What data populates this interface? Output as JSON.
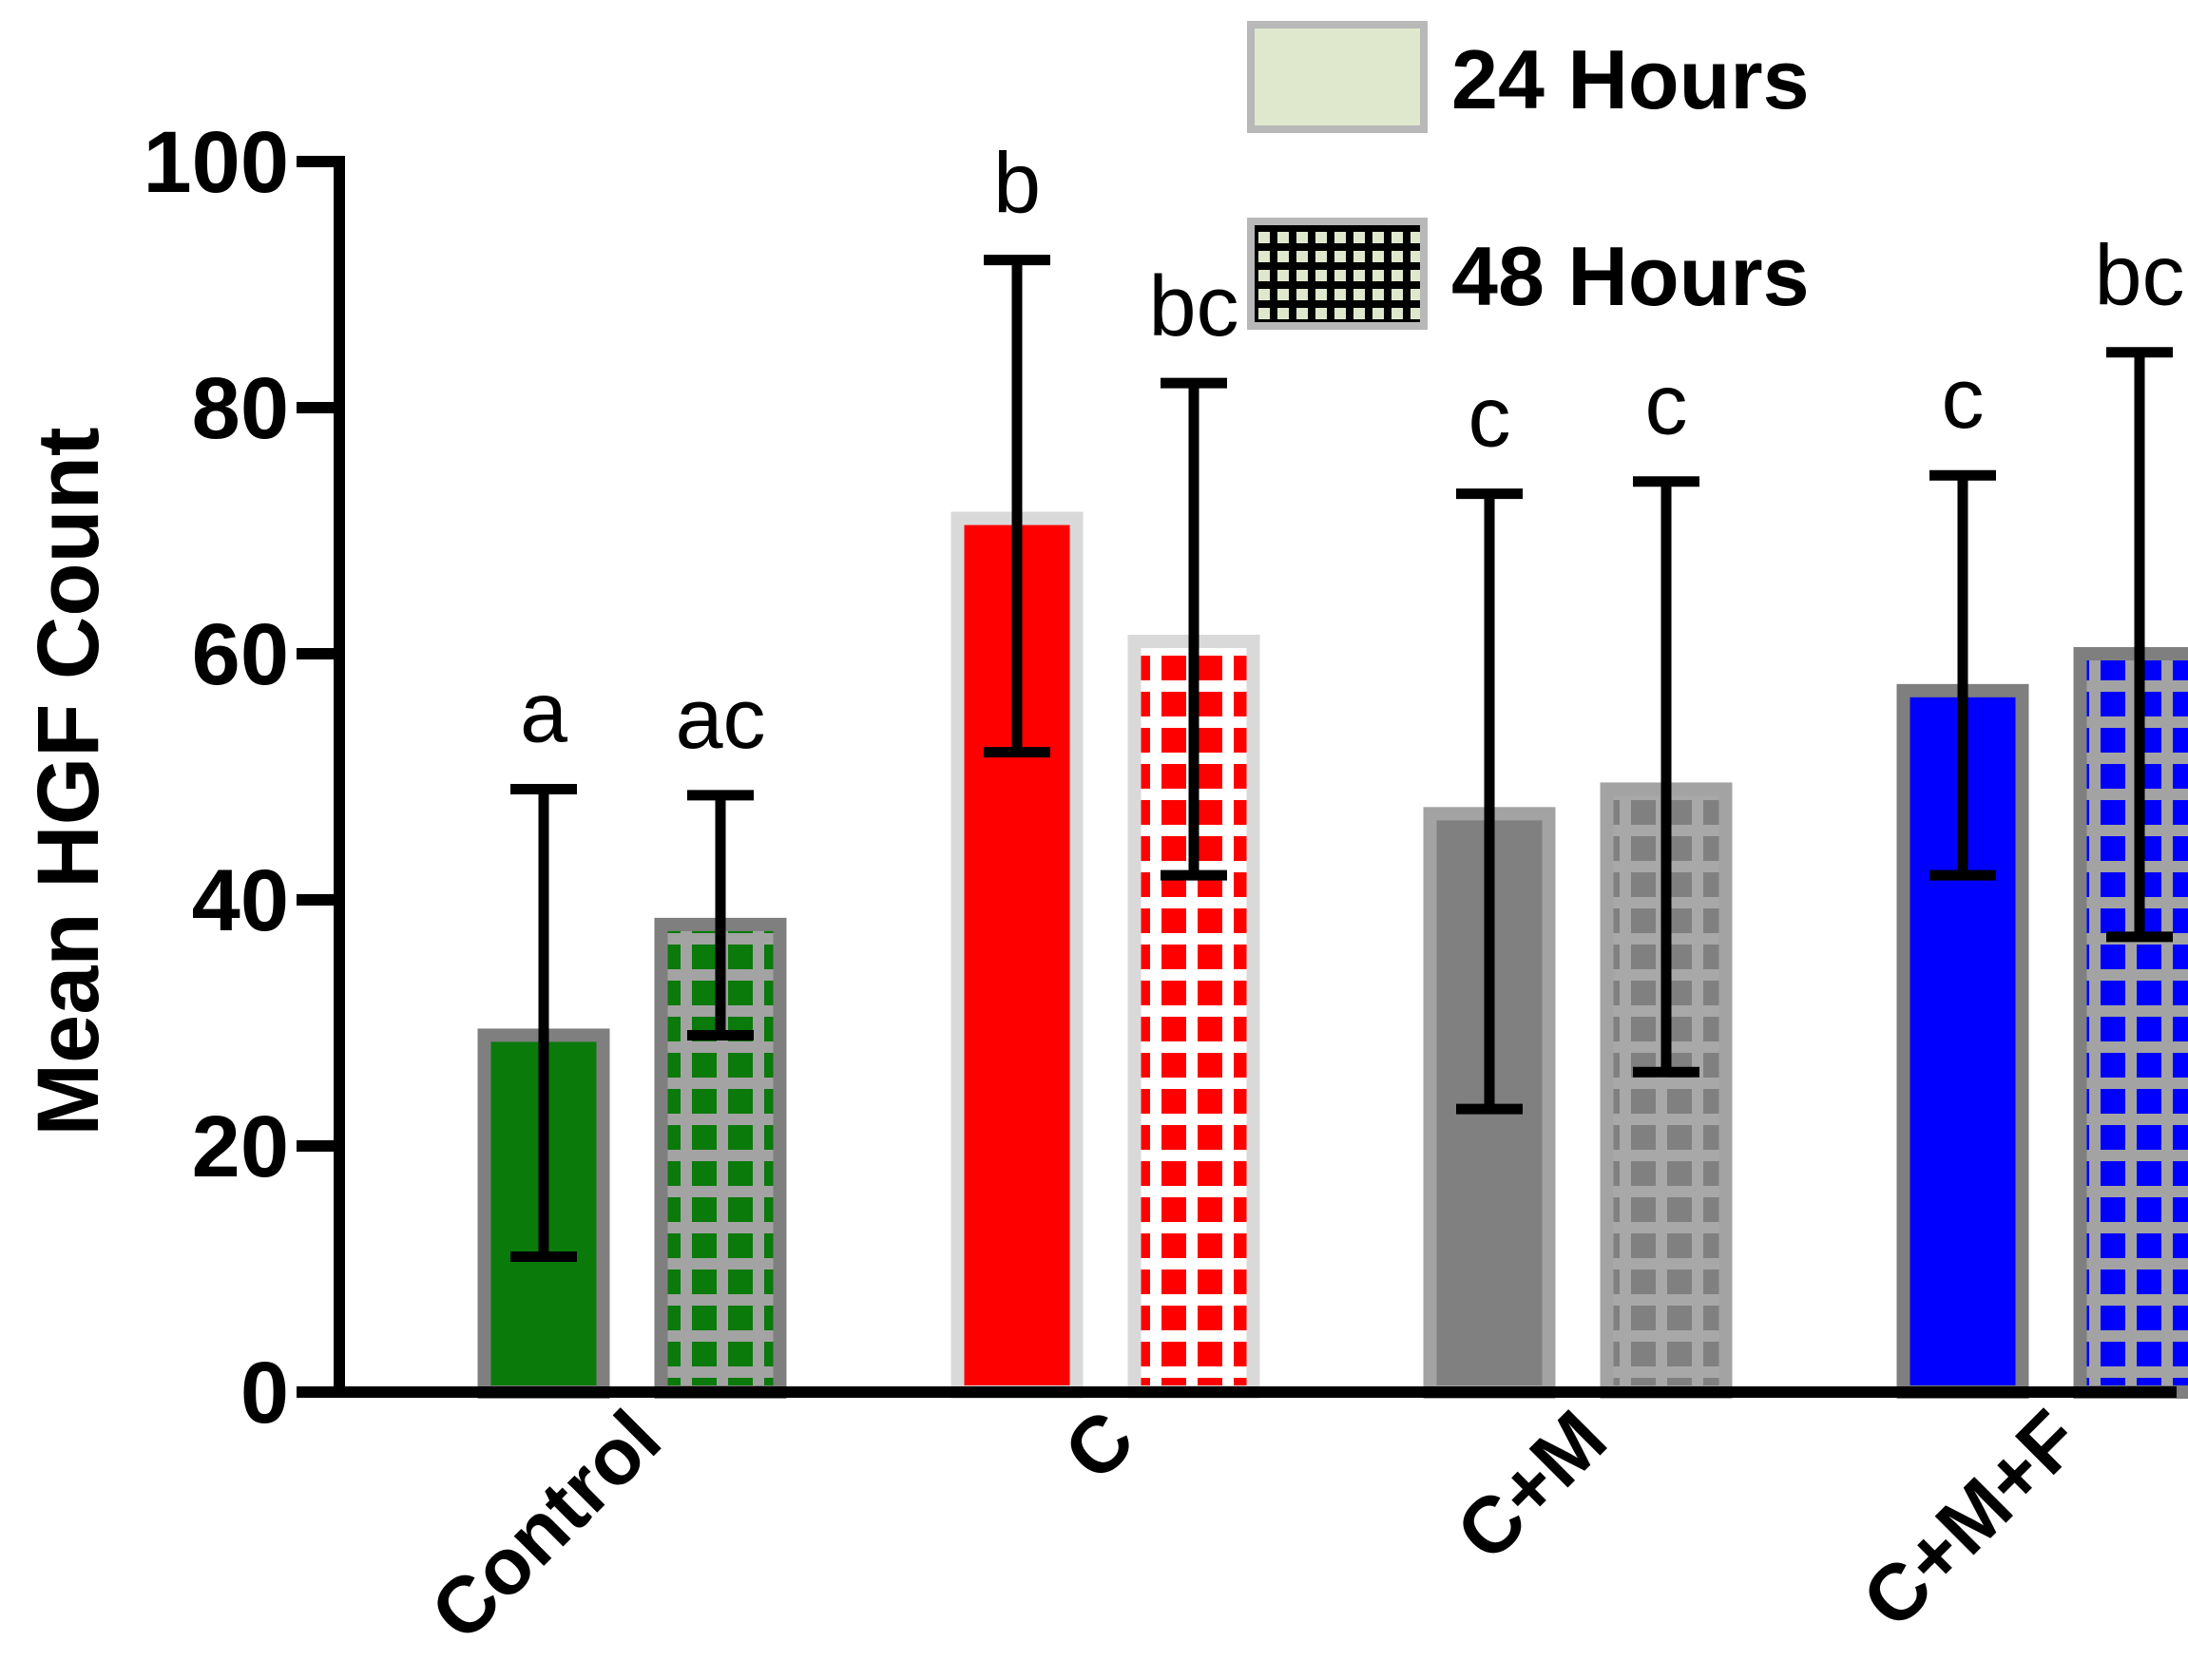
{
  "chart_data": {
    "type": "bar",
    "title": "",
    "xlabel": "",
    "ylabel": "Mean HGF Count",
    "ylim": [
      0,
      100
    ],
    "yticks": [
      0,
      20,
      40,
      60,
      80,
      100
    ],
    "categories": [
      "Control",
      "C",
      "C+M",
      "C+M+F"
    ],
    "legend_position": "top-right",
    "colors": {
      "Control": "#0a7a0a",
      "C": "#ff0000",
      "C+M": "#808080",
      "C+M+F": "#0000ff",
      "legend_fill": "#dfe8cc",
      "legend_border": "#b8b8b8"
    },
    "series": [
      {
        "name": "24 Hours",
        "pattern": "solid",
        "values": [
          29,
          71,
          47,
          57
        ],
        "err_low": [
          11,
          52,
          23,
          42
        ],
        "err_high": [
          49,
          92,
          73,
          74.5
        ],
        "sig_labels": [
          "a",
          "b",
          "c",
          "c"
        ]
      },
      {
        "name": "48 Hours",
        "pattern": "grid",
        "values": [
          38,
          61,
          49,
          60
        ],
        "err_low": [
          29,
          42,
          26,
          37
        ],
        "err_high": [
          48.5,
          82,
          74,
          84.5
        ],
        "sig_labels": [
          "ac",
          "bc",
          "c",
          "bc"
        ]
      }
    ]
  }
}
